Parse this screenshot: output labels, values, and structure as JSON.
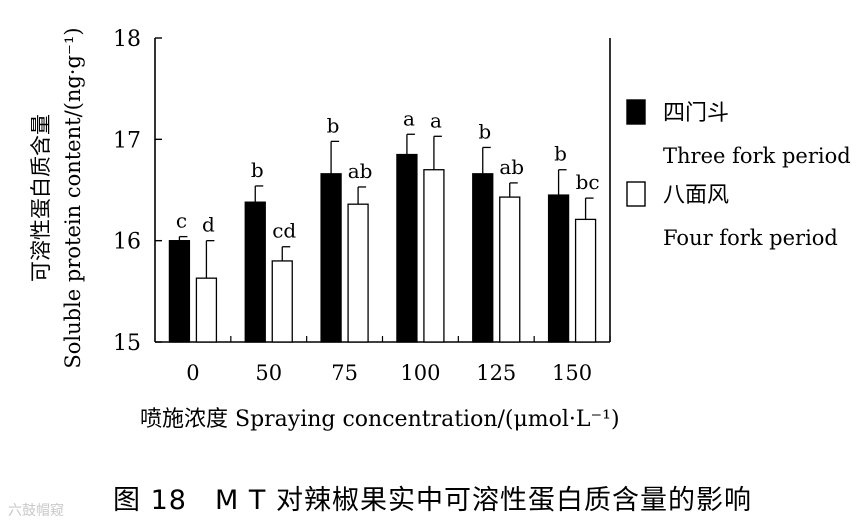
{
  "chart_data": {
    "type": "bar",
    "categories": [
      "0",
      "50",
      "75",
      "100",
      "125",
      "150"
    ],
    "series": [
      {
        "name_cn": "四门斗",
        "name": "Three fork period",
        "fill": "#000000",
        "values": [
          16.0,
          16.38,
          16.66,
          16.85,
          16.66,
          16.45
        ],
        "errors": [
          0.04,
          0.16,
          0.32,
          0.2,
          0.26,
          0.25
        ],
        "letters": [
          "c",
          "b",
          "b",
          "a",
          "b",
          "b"
        ]
      },
      {
        "name_cn": "八面风",
        "name": "Four fork period",
        "fill": "#ffffff",
        "values": [
          15.63,
          15.8,
          16.36,
          16.7,
          16.43,
          16.21
        ],
        "errors": [
          0.37,
          0.14,
          0.17,
          0.33,
          0.14,
          0.21
        ],
        "letters": [
          "d",
          "cd",
          "ab",
          "a",
          "ab",
          "bc"
        ]
      }
    ],
    "ylim": [
      15,
      18
    ],
    "yticks": [
      15,
      16,
      17,
      18
    ],
    "ylabel_cn": "可溶性蛋白质含量",
    "ylabel": "Soluble protein content/(ng·g⁻¹)",
    "xlabel": "喷施浓度 Spraying concentration/(μmol·L⁻¹)",
    "legend_position": "right"
  },
  "caption": "图 18　M T 对辣椒果实中可溶性蛋白质含量的影响",
  "watermark": "六鼓帽窥"
}
